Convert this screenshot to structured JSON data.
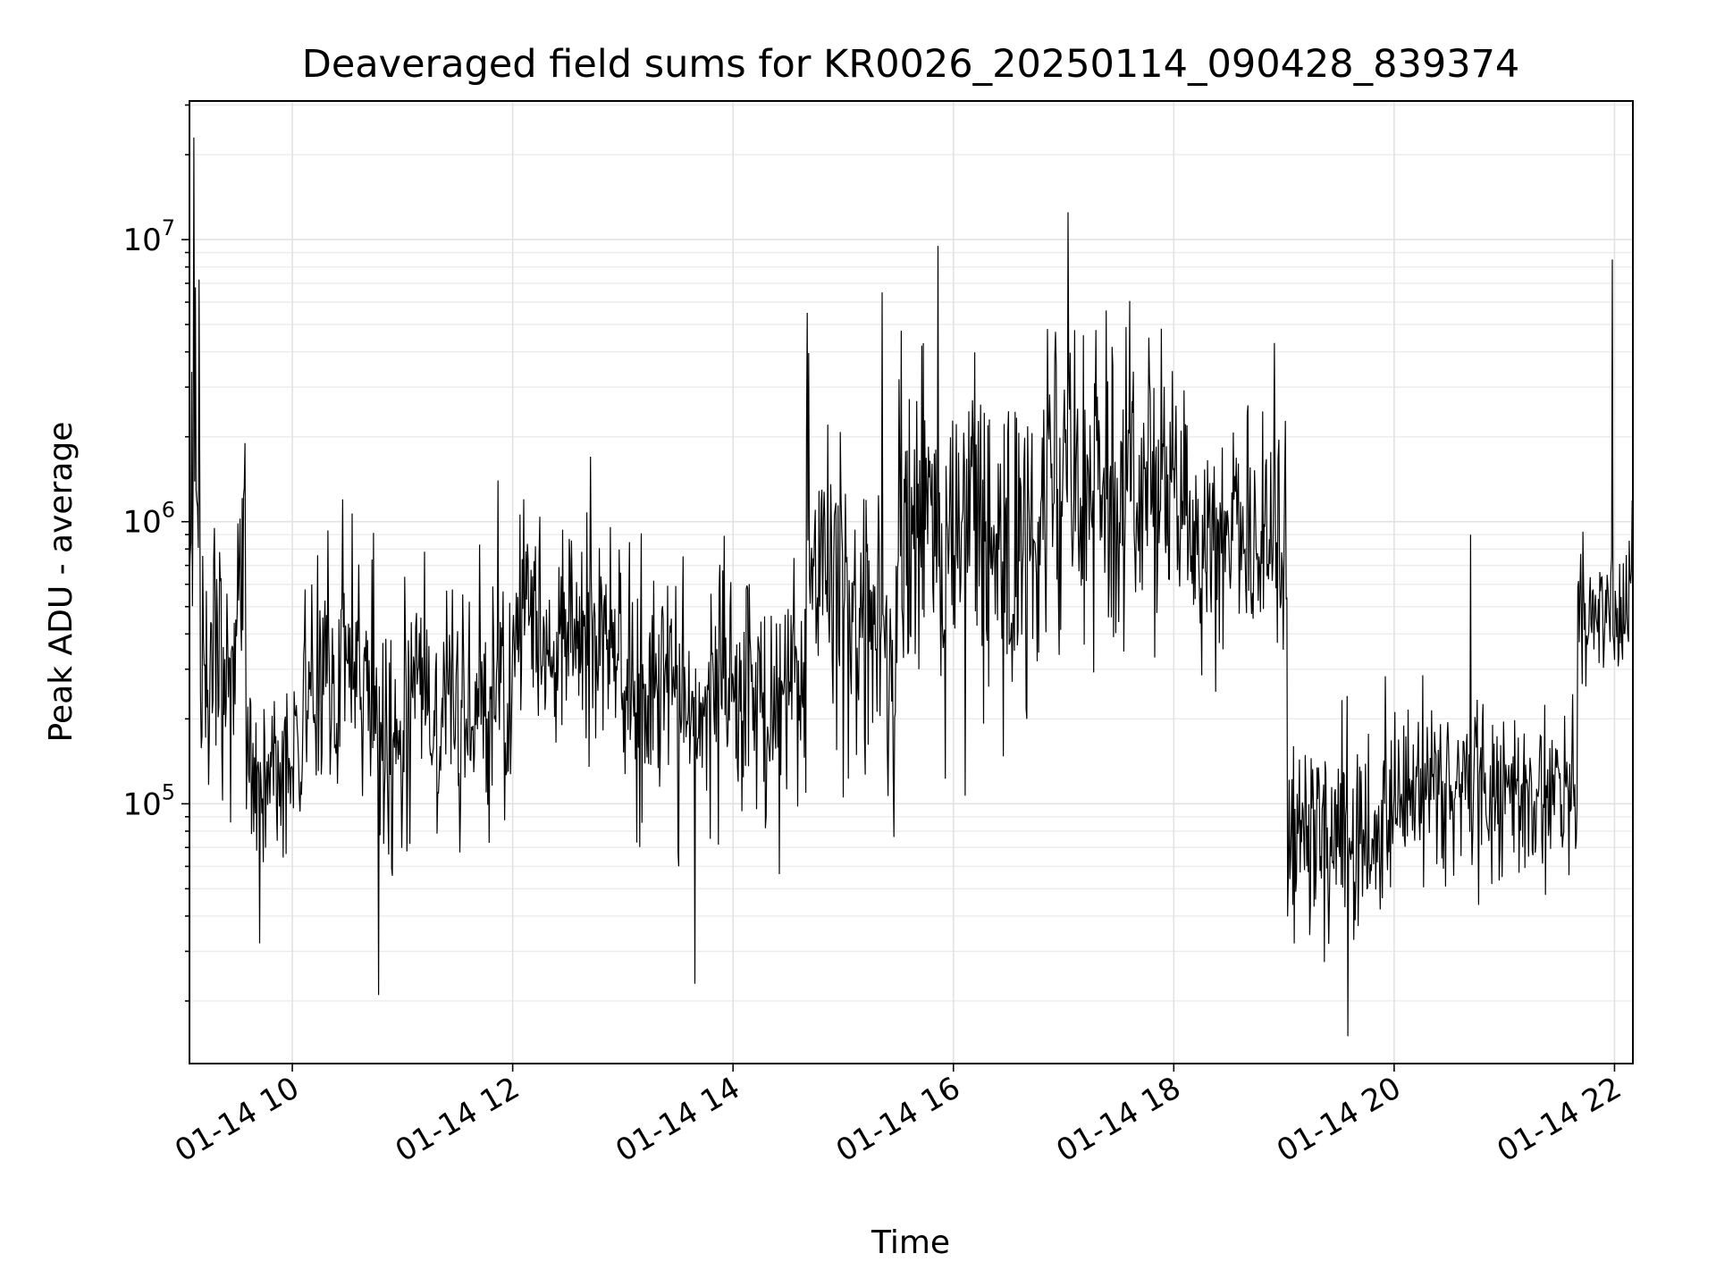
{
  "chart_data": {
    "type": "line",
    "title": "Deaveraged field sums for KR0026_20250114_090428_839374",
    "xlabel": "Time",
    "ylabel": "Peak ADU - average",
    "yscale": "log",
    "grid": true,
    "x_range": [
      "01-14 09:04",
      "01-14 22:10"
    ],
    "ylim": [
      12000,
      31000000
    ],
    "x_ticks": [
      {
        "hour": 10,
        "label": "01-14 10"
      },
      {
        "hour": 12,
        "label": "01-14 12"
      },
      {
        "hour": 14,
        "label": "01-14 14"
      },
      {
        "hour": 16,
        "label": "01-14 16"
      },
      {
        "hour": 18,
        "label": "01-14 18"
      },
      {
        "hour": 20,
        "label": "01-14 20"
      },
      {
        "hour": 22,
        "label": "01-14 22"
      }
    ],
    "y_ticks": [
      {
        "value": 100000,
        "base": "10",
        "exp": "5"
      },
      {
        "value": 1000000,
        "base": "10",
        "exp": "6"
      },
      {
        "value": 10000000,
        "base": "10",
        "exp": "7"
      }
    ],
    "series": [
      {
        "color": "#000000",
        "segments": [
          {
            "start": "01-14 09:04",
            "end": "01-14 09:10",
            "level": 1000000,
            "spread": 0.9,
            "max": 23000000
          },
          {
            "start": "01-14 09:10",
            "end": "01-14 09:30",
            "level": 300000,
            "spread": 0.38,
            "max": 950000
          },
          {
            "start": "01-14 09:30",
            "end": "01-14 09:35",
            "level": 500000,
            "spread": 0.45,
            "max": 1900000
          },
          {
            "start": "01-14 09:35",
            "end": "01-14 10:05",
            "level": 130000,
            "spread": 0.3,
            "min": 32000
          },
          {
            "start": "01-14 10:05",
            "end": "01-14 10:45",
            "level": 280000,
            "spread": 0.38,
            "max": 1200000
          },
          {
            "start": "01-14 10:45",
            "end": "01-14 11:00",
            "level": 180000,
            "spread": 0.42,
            "min": 21000
          },
          {
            "start": "01-14 11:00",
            "end": "01-14 12:00",
            "level": 230000,
            "spread": 0.38,
            "max": 1400000
          },
          {
            "start": "01-14 12:00",
            "end": "01-14 13:00",
            "level": 400000,
            "spread": 0.34,
            "max": 1700000
          },
          {
            "start": "01-14 13:00",
            "end": "01-14 14:40",
            "level": 230000,
            "spread": 0.38,
            "min": 23000
          },
          {
            "start": "01-14 14:40",
            "end": "01-14 15:00",
            "level": 800000,
            "spread": 0.4,
            "max": 5500000
          },
          {
            "start": "01-14 15:00",
            "end": "01-14 15:30",
            "level": 400000,
            "spread": 0.48,
            "max": 6500000
          },
          {
            "start": "01-14 15:30",
            "end": "01-14 16:50",
            "level": 900000,
            "spread": 0.55,
            "max": 9500000
          },
          {
            "start": "01-14 16:50",
            "end": "01-14 18:00",
            "level": 1300000,
            "spread": 0.45,
            "max": 12500000
          },
          {
            "start": "01-14 18:00",
            "end": "01-14 19:02",
            "level": 900000,
            "spread": 0.35,
            "max": 4300000
          },
          {
            "start": "01-14 19:02",
            "end": "01-14 20:00",
            "level": 80000,
            "spread": 0.32,
            "min": 15000
          },
          {
            "start": "01-14 20:00",
            "end": "01-14 21:40",
            "level": 110000,
            "spread": 0.25,
            "max": 900000
          },
          {
            "start": "01-14 21:40",
            "end": "01-14 22:10",
            "level": 500000,
            "spread": 0.3,
            "max": 8500000
          }
        ]
      }
    ]
  }
}
